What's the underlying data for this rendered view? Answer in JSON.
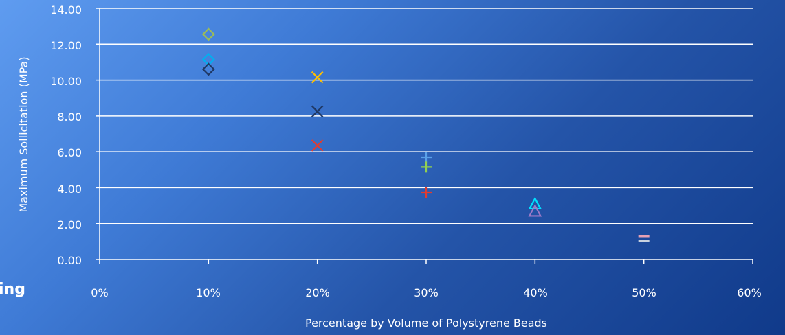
{
  "edge_text": "ing",
  "chart_data": {
    "type": "scatter",
    "title": "",
    "xlabel": "Percentage by Volume of Polystyrene Beads",
    "ylabel": "Maximum Sollicitation (MPa)",
    "xlim": [
      0,
      60
    ],
    "ylim": [
      0,
      14
    ],
    "x_ticks": [
      "0%",
      "10%",
      "20%",
      "30%",
      "40%",
      "50%",
      "60%"
    ],
    "y_ticks": [
      "0.00",
      "2.00",
      "4.00",
      "6.00",
      "8.00",
      "10.00",
      "12.00",
      "14.00"
    ],
    "grid": true,
    "series": [
      {
        "marker": "diamond",
        "color": "#9bbb59",
        "points": [
          {
            "x": 10,
            "y": 12.55
          }
        ]
      },
      {
        "marker": "diamond",
        "color": "#00b0f0",
        "points": [
          {
            "x": 10,
            "y": 11.15
          }
        ]
      },
      {
        "marker": "diamond",
        "color": "#1f3864",
        "points": [
          {
            "x": 10,
            "y": 10.6
          }
        ]
      },
      {
        "marker": "x",
        "color": "#ffc000",
        "points": [
          {
            "x": 20,
            "y": 10.15
          }
        ]
      },
      {
        "marker": "x",
        "color": "#1f3864",
        "points": [
          {
            "x": 20,
            "y": 8.25
          }
        ]
      },
      {
        "marker": "x",
        "color": "#e03c31",
        "points": [
          {
            "x": 20,
            "y": 6.35
          }
        ]
      },
      {
        "marker": "plus",
        "color": "#5aa0e8",
        "points": [
          {
            "x": 30,
            "y": 5.7
          }
        ]
      },
      {
        "marker": "plus",
        "color": "#92d050",
        "points": [
          {
            "x": 30,
            "y": 5.15
          }
        ]
      },
      {
        "marker": "plus",
        "color": "#e03c31",
        "points": [
          {
            "x": 30,
            "y": 3.75
          }
        ]
      },
      {
        "marker": "triangle",
        "color": "#00e0ff",
        "points": [
          {
            "x": 40,
            "y": 3.1
          }
        ]
      },
      {
        "marker": "triangle",
        "color": "#9e7ac8",
        "points": [
          {
            "x": 40,
            "y": 2.7
          }
        ]
      },
      {
        "marker": "dash",
        "color": "#e6a0b4",
        "points": [
          {
            "x": 50,
            "y": 1.3
          }
        ]
      },
      {
        "marker": "dash",
        "color": "#c7d2e0",
        "points": [
          {
            "x": 50,
            "y": 1.05
          }
        ]
      }
    ]
  }
}
